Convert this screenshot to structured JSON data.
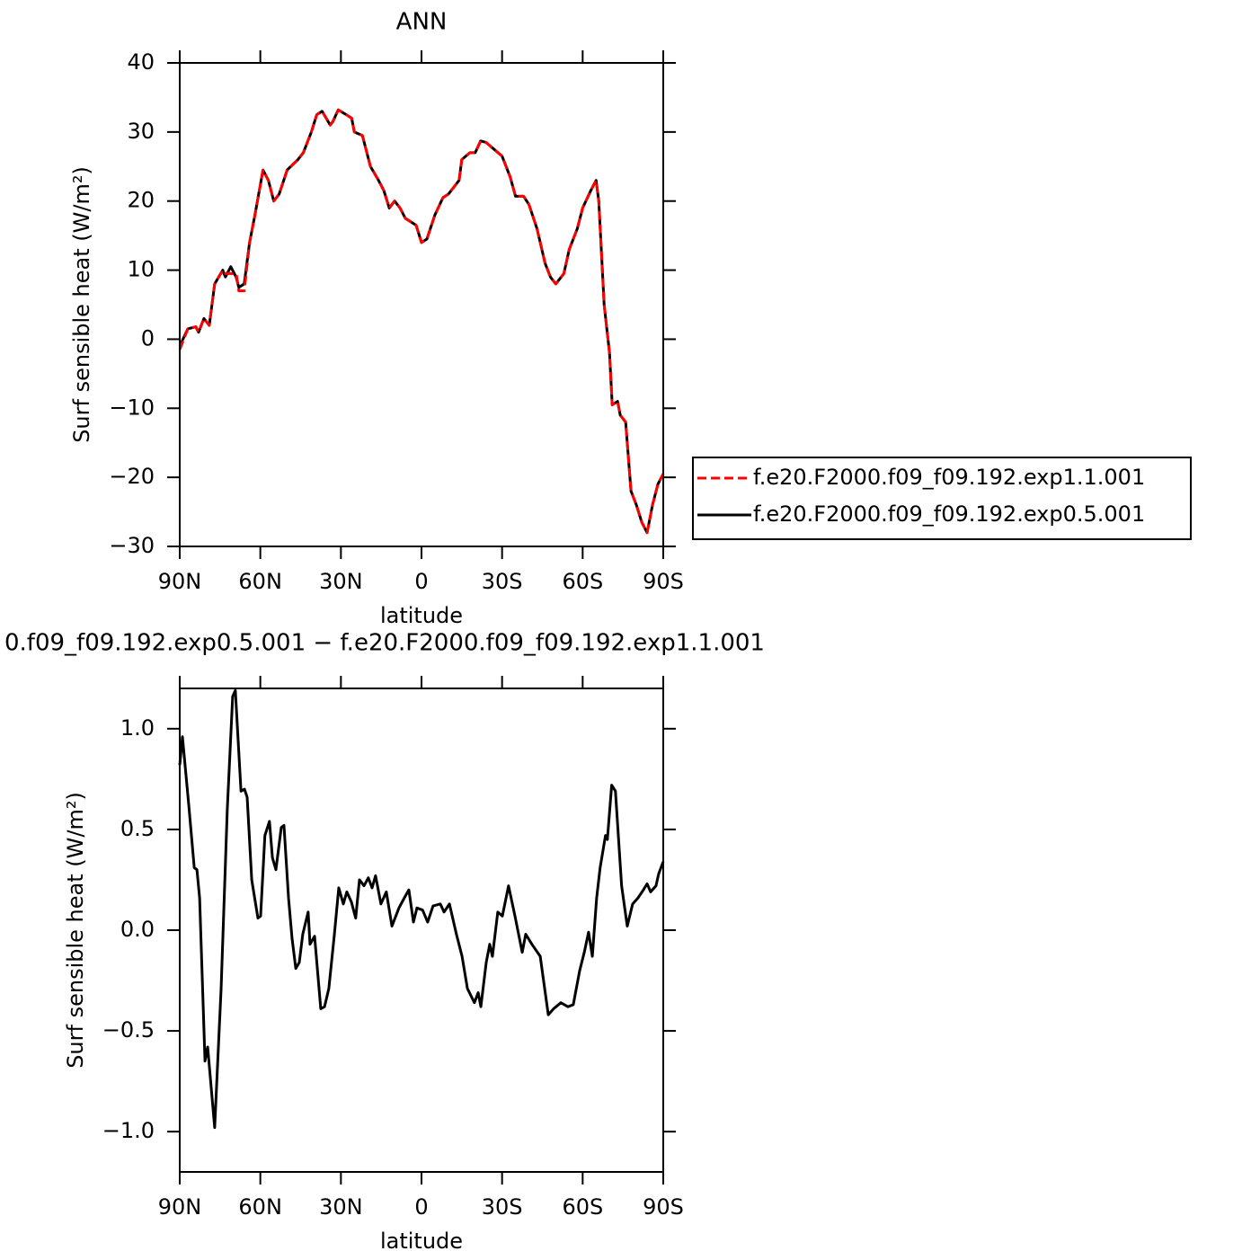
{
  "chart_data": [
    {
      "type": "line",
      "title": "ANN",
      "xlabel": "latitude",
      "ylabel": "Surf sensible heat (W/m²)",
      "xlim": [
        90,
        -90
      ],
      "ylim": [
        -30,
        40
      ],
      "xticks": [
        {
          "value": 90,
          "label": "90N"
        },
        {
          "value": 60,
          "label": "60N"
        },
        {
          "value": 30,
          "label": "30N"
        },
        0,
        {
          "value": -30,
          "label": "30S"
        },
        {
          "value": -60,
          "label": "60S"
        },
        {
          "value": -90,
          "label": "90S"
        }
      ],
      "yticks": [
        40,
        30,
        20,
        10,
        0,
        {
          "value": -10,
          "label": "−10"
        },
        {
          "value": -20,
          "label": "−20"
        },
        {
          "value": -30,
          "label": "−30"
        }
      ],
      "legend": "right",
      "x": [
        90,
        87,
        84,
        83,
        81,
        79,
        77,
        74,
        73,
        71,
        69,
        68,
        66,
        64,
        62,
        59,
        57,
        55,
        53,
        50,
        46,
        44,
        41,
        39,
        37,
        34,
        33,
        31,
        28,
        26,
        25,
        22,
        19,
        16,
        14,
        12,
        10,
        8,
        6,
        2,
        0,
        -2,
        -5,
        -8,
        -10,
        -14,
        -15,
        -18,
        -20,
        -22,
        -24,
        -27,
        -30,
        -33,
        -35,
        -38,
        -40,
        -43,
        -46,
        -48,
        -50,
        -53,
        -55,
        -58,
        -60,
        -63,
        -65,
        -66,
        -68,
        -70,
        -71,
        -73,
        -74,
        -76,
        -78,
        -80,
        -82,
        -84,
        -86,
        -88,
        -90
      ],
      "series": [
        {
          "name": "f.e20.F2000.f09_f09.192.exp1.1.001",
          "color": "#ff0000",
          "line_style": "dashed",
          "values": [
            -1.5,
            1.5,
            1.8,
            1,
            3,
            2,
            8,
            10,
            9.5,
            9.5,
            9.5,
            7,
            7,
            14,
            18,
            24.5,
            23,
            20,
            21,
            24.5,
            26,
            27,
            30,
            32.5,
            33,
            31,
            31.5,
            33.2,
            32.5,
            32,
            30,
            29.5,
            25,
            23,
            21.5,
            19,
            20,
            19,
            17.5,
            16.5,
            14,
            14.5,
            18,
            20.5,
            21,
            23,
            26,
            27,
            27,
            28.7,
            28.5,
            27.5,
            26.5,
            23.5,
            20.7,
            20.7,
            19.5,
            16,
            11,
            9,
            8,
            9.5,
            13,
            16,
            19,
            21.5,
            23,
            20,
            5,
            -2,
            -9.5,
            -9,
            -11,
            -12,
            -22,
            -24,
            -26.5,
            -28,
            -24,
            -21,
            -19.5
          ]
        },
        {
          "name": "f.e20.F2000.f09_f09.192.exp0.5.001",
          "color": "#000000",
          "line_style": "solid",
          "values": [
            -1,
            1.5,
            1.8,
            1,
            3,
            2,
            8,
            10,
            9,
            10.5,
            9,
            7.5,
            8,
            14,
            18,
            24.5,
            23,
            20,
            21,
            24.5,
            26,
            27,
            30,
            32.5,
            33,
            31,
            31.5,
            33.2,
            32.5,
            32,
            30,
            29.5,
            25,
            23,
            21.5,
            19,
            20,
            19,
            17.5,
            16.5,
            14,
            14.5,
            18,
            20.5,
            21,
            23,
            26,
            27,
            27,
            28.7,
            28.5,
            27.5,
            26.5,
            23.5,
            20.7,
            20.7,
            19.5,
            16,
            11,
            9,
            8,
            9.5,
            13,
            16,
            19,
            21.5,
            23,
            20,
            5,
            -2,
            -9.5,
            -9,
            -11,
            -12,
            -22,
            -24,
            -26.5,
            -28,
            -24,
            -21,
            -19.5
          ]
        }
      ]
    },
    {
      "type": "line",
      "title": "0.f09_f09.192.exp0.5.001 − f.e20.F2000.f09_f09.192.exp1.1.001",
      "xlabel": "latitude",
      "ylabel": "Surf sensible heat (W/m²)",
      "xlim": [
        90,
        -90
      ],
      "ylim": [
        -1.2,
        1.2
      ],
      "xticks": [
        {
          "value": 90,
          "label": "90N"
        },
        {
          "value": 60,
          "label": "60N"
        },
        {
          "value": 30,
          "label": "30N"
        },
        0,
        {
          "value": -30,
          "label": "30S"
        },
        {
          "value": -60,
          "label": "60S"
        },
        {
          "value": -90,
          "label": "90S"
        }
      ],
      "yticks": [
        {
          "value": 1,
          "label": "1.0"
        },
        {
          "value": 0.5,
          "label": "0.5"
        },
        {
          "value": 0,
          "label": "0.0"
        },
        {
          "value": -0.5,
          "label": "−0.5"
        },
        {
          "value": -1,
          "label": "−1.0"
        }
      ],
      "x": [
        90.0,
        89.0,
        86.7,
        84.6,
        83.6,
        82.6,
        80.6,
        79.6,
        77.0,
        74.6,
        72.3,
        70.3,
        69.3,
        67.2,
        65.9,
        64.9,
        63.2,
        60.9,
        59.9,
        58.3,
        56.6,
        55.5,
        54.2,
        52.2,
        51.2,
        49.5,
        48.2,
        46.8,
        45.5,
        44.2,
        42.2,
        41.5,
        39.8,
        37.5,
        36.1,
        34.5,
        32.5,
        30.8,
        29.1,
        27.8,
        26.1,
        24.5,
        23.1,
        21.4,
        19.8,
        18.4,
        17.1,
        15.1,
        13.1,
        11.0,
        8.4,
        6.4,
        4.7,
        3.0,
        1.7,
        -0.4,
        -2.3,
        -4.3,
        -7.0,
        -8.4,
        -10.4,
        -13.0,
        -15.1,
        -17.1,
        -19.7,
        -21.1,
        -22.1,
        -24.1,
        -25.4,
        -26.4,
        -28.4,
        -30.1,
        -32.4,
        -34.8,
        -37.5,
        -38.8,
        -41.1,
        -44.2,
        -47.2,
        -49.2,
        -51.9,
        -54.5,
        -56.5,
        -58.9,
        -60.6,
        -62.2,
        -63.6,
        -65.2,
        -66.5,
        -68.5,
        -69.2,
        -70.8,
        -72.2,
        -74.5,
        -76.6,
        -78.6,
        -80.6,
        -82.6,
        -84.0,
        -85.3,
        -87.3,
        -88.3,
        -90.0
      ],
      "series": [
        {
          "color": "#000000",
          "line_style": "solid",
          "values": [
            0.82,
            0.96,
            0.63,
            0.31,
            0.3,
            0.16,
            -0.65,
            -0.58,
            -0.98,
            -0.29,
            0.6,
            1.16,
            1.19,
            0.69,
            0.7,
            0.66,
            0.25,
            0.06,
            0.07,
            0.47,
            0.54,
            0.36,
            0.3,
            0.51,
            0.52,
            0.16,
            -0.04,
            -0.19,
            -0.16,
            -0.02,
            0.09,
            -0.07,
            -0.03,
            -0.39,
            -0.38,
            -0.29,
            -0.03,
            0.21,
            0.13,
            0.19,
            0.14,
            0.06,
            0.25,
            0.22,
            0.26,
            0.21,
            0.27,
            0.13,
            0.19,
            0.02,
            0.11,
            0.16,
            0.2,
            0.04,
            0.11,
            0.1,
            0.04,
            0.12,
            0.13,
            0.09,
            0.13,
            -0.02,
            -0.13,
            -0.29,
            -0.36,
            -0.31,
            -0.38,
            -0.16,
            -0.07,
            -0.13,
            0.09,
            0.07,
            0.22,
            0.07,
            -0.11,
            -0.02,
            -0.07,
            -0.13,
            -0.42,
            -0.39,
            -0.36,
            -0.38,
            -0.37,
            -0.2,
            -0.11,
            -0.01,
            -0.13,
            0.16,
            0.31,
            0.47,
            0.45,
            0.72,
            0.69,
            0.22,
            0.02,
            0.13,
            0.16,
            0.2,
            0.23,
            0.19,
            0.22,
            0.28,
            0.34
          ]
        }
      ]
    }
  ]
}
